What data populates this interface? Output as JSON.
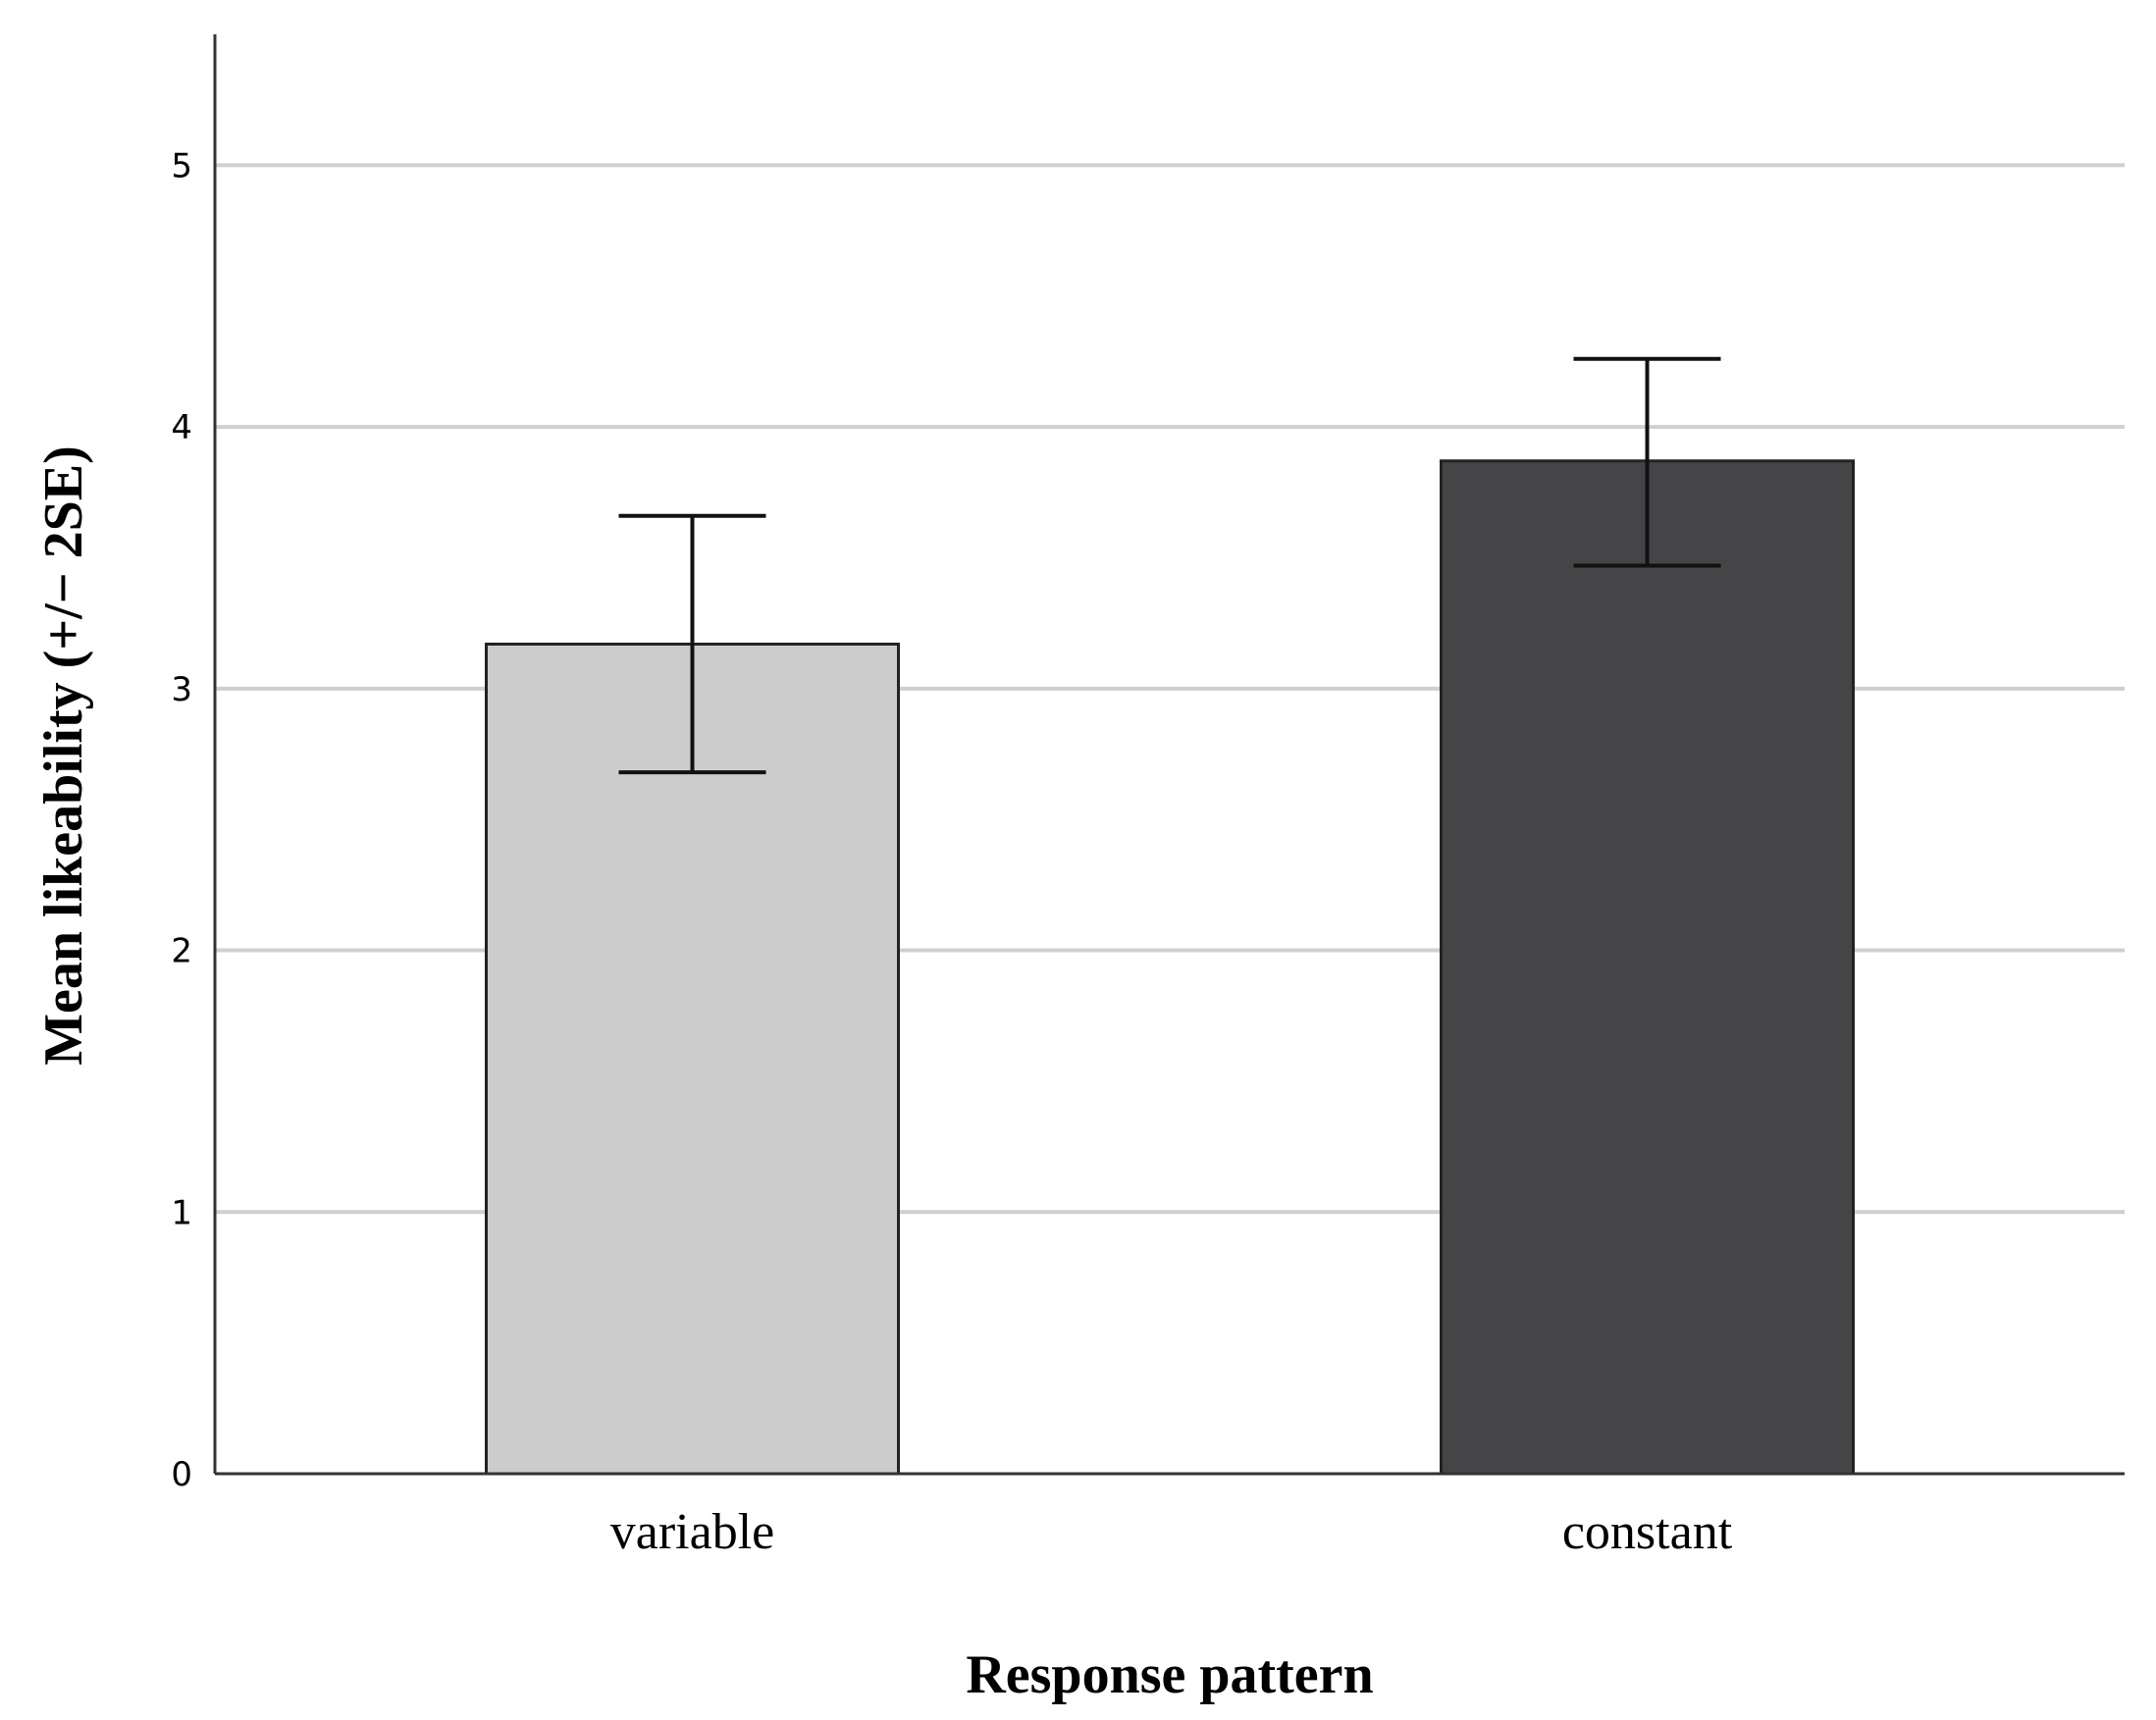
{
  "chart_data": {
    "type": "bar",
    "categories": [
      "variable",
      "constant"
    ],
    "values": [
      3.17,
      3.87
    ],
    "error_bars": [
      {
        "lower": 2.68,
        "upper": 3.66
      },
      {
        "lower": 3.47,
        "upper": 4.26
      }
    ],
    "bar_colors": [
      "#cccccc",
      "#454547"
    ],
    "xlabel": "Response pattern",
    "ylabel": "Mean likeability (+/− 2SE)",
    "ylim": [
      0,
      5.5
    ],
    "yticks": [
      0,
      1,
      2,
      3,
      4,
      5
    ],
    "grid": true,
    "legend": false
  }
}
